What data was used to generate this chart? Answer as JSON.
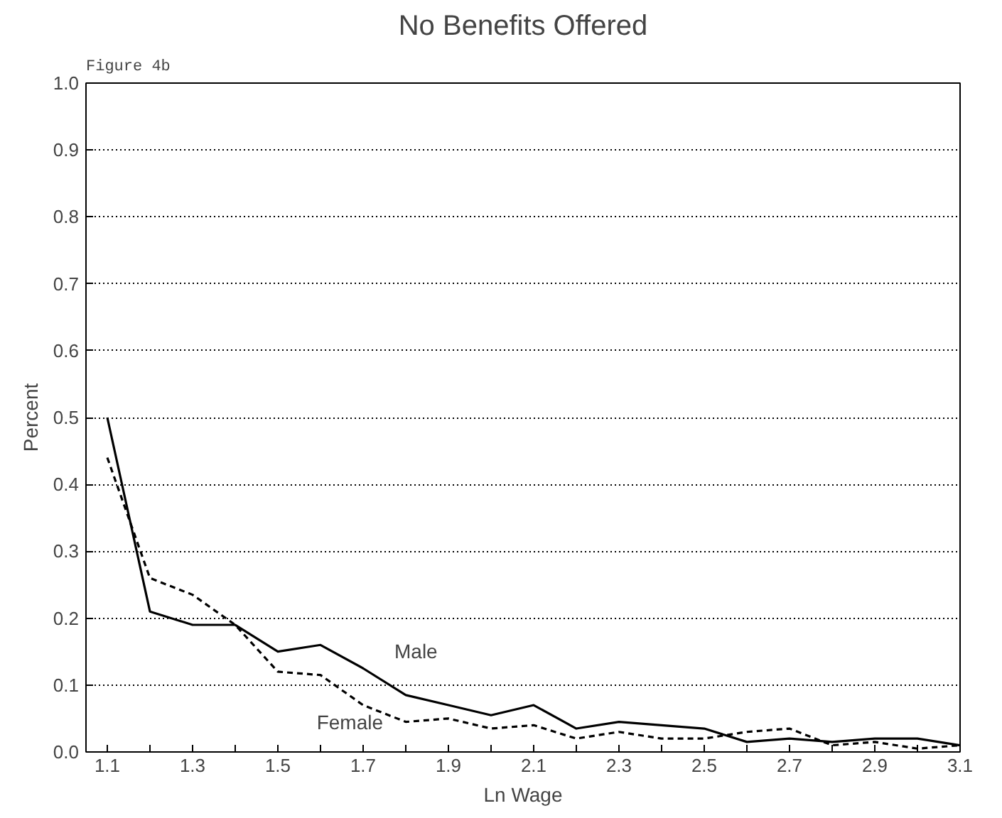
{
  "chart_data": {
    "type": "line",
    "title": "No Benefits Offered",
    "xlabel": "Ln Wage",
    "ylabel": "Percent",
    "annotations": [
      "Figure 4b"
    ],
    "x": [
      1.1,
      1.2,
      1.3,
      1.4,
      1.5,
      1.6,
      1.7,
      1.8,
      1.9,
      2.0,
      2.1,
      2.2,
      2.3,
      2.4,
      2.5,
      2.6,
      2.7,
      2.8,
      2.9,
      3.0,
      3.1
    ],
    "series": [
      {
        "name": "Male",
        "color": "#000000",
        "line_style": "solid",
        "values": [
          0.5,
          0.21,
          0.19,
          0.19,
          0.15,
          0.16,
          0.125,
          0.085,
          0.07,
          0.055,
          0.07,
          0.035,
          0.045,
          0.04,
          0.035,
          0.015,
          0.02,
          0.015,
          0.02,
          0.02,
          0.01
        ]
      },
      {
        "name": "Female",
        "color": "#000000",
        "line_style": "dashed",
        "values": [
          0.44,
          0.26,
          0.235,
          0.19,
          0.12,
          0.115,
          0.07,
          0.045,
          0.05,
          0.035,
          0.04,
          0.02,
          0.03,
          0.02,
          0.02,
          0.03,
          0.035,
          0.01,
          0.015,
          0.005,
          0.01
        ]
      }
    ],
    "xlim": [
      1.05,
      3.1
    ],
    "ylim": [
      0,
      1.0
    ],
    "xticks": [
      1.1,
      {
        "value": 1.2,
        "label": null
      },
      1.3,
      {
        "value": 1.4,
        "label": null
      },
      1.5,
      {
        "value": 1.6,
        "label": null
      },
      1.7,
      {
        "value": 1.8,
        "label": null
      },
      1.9,
      {
        "value": 2.0,
        "label": null
      },
      2.1,
      {
        "value": 2.2,
        "label": null
      },
      2.3,
      {
        "value": 2.4,
        "label": null
      },
      2.5,
      {
        "value": 2.6,
        "label": null
      },
      2.7,
      {
        "value": 2.8,
        "label": null
      },
      2.9,
      {
        "value": 3.0,
        "label": null
      },
      3.1
    ],
    "yticks": [
      {
        "value": 0,
        "label": "0.0"
      },
      0.1,
      0.2,
      0.3,
      0.4,
      0.5,
      0.6,
      0.7,
      0.8,
      0.9,
      {
        "value": 1,
        "label": "1.0"
      }
    ],
    "grid": "y",
    "legend": false,
    "marker": "none"
  }
}
